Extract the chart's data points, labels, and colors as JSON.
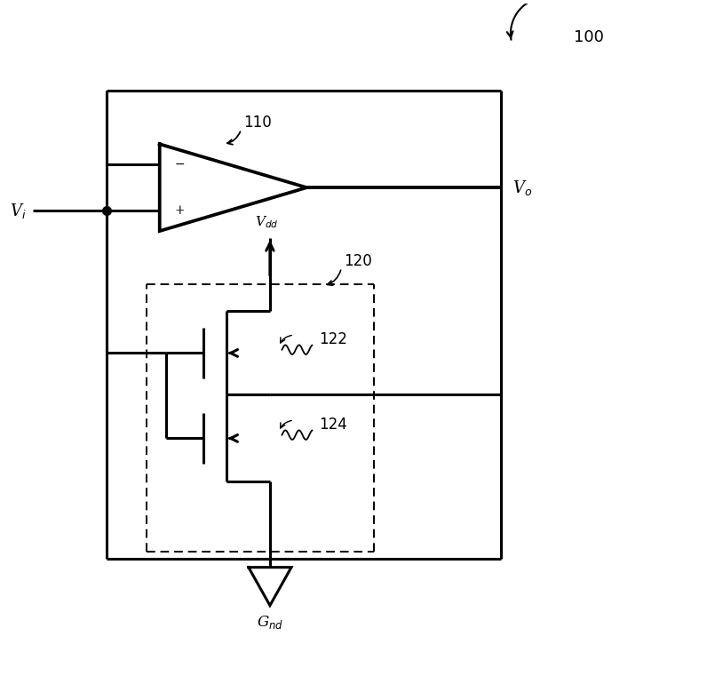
{
  "bg_color": "#ffffff",
  "line_color": "#000000",
  "fig_width": 7.96,
  "fig_height": 7.61,
  "label_100": "100",
  "label_110": "110",
  "label_120": "120",
  "label_122": "122",
  "label_124": "124",
  "label_Vi": "V$_i$",
  "label_Vo": "V$_o$",
  "label_Vdd": "V$_{dd}$",
  "label_Gnd": "G$_{nd}$",
  "lw_main": 2.2,
  "lw_thin": 1.4
}
